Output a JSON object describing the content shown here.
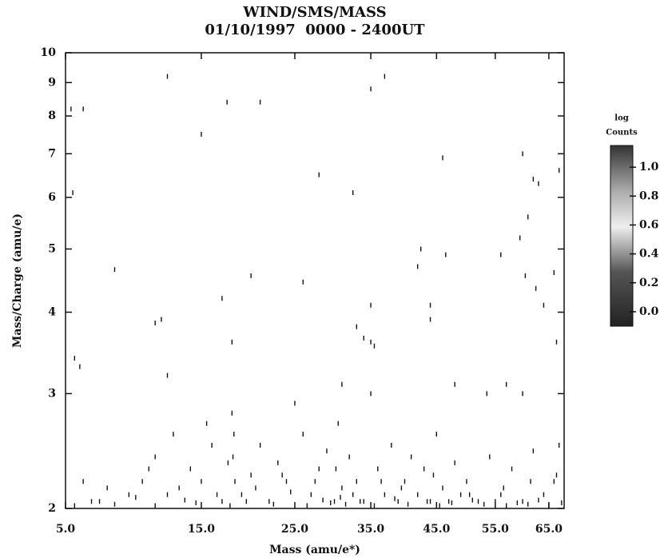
{
  "chart_data": {
    "type": "scatter",
    "title": "WIND/SMS/MASS",
    "subtitle": "01/10/1997  0000 - 2400UT",
    "x_label": "Mass (amu/e*)",
    "y_label": "Mass/Charge (amu/e)",
    "xscale": "sqrt",
    "yscale": "log",
    "xlim": [
      5,
      68
    ],
    "ylim": [
      2,
      10
    ],
    "xticks": [
      {
        "value": 5,
        "label": "5.0"
      },
      {
        "value": 15,
        "label": "15.0"
      },
      {
        "value": 25,
        "label": "25.0"
      },
      {
        "value": 35,
        "label": "35.0"
      },
      {
        "value": 45,
        "label": "45.0"
      },
      {
        "value": 55,
        "label": "55.0"
      },
      {
        "value": 65,
        "label": "65.0"
      }
    ],
    "yticks": [
      2,
      3,
      4,
      5,
      6,
      7,
      8,
      9,
      10
    ],
    "color": "#111111",
    "x": [
      5.3,
      6,
      5.4,
      12,
      15,
      17.5,
      21,
      28,
      32.5,
      35,
      37,
      46,
      60,
      62,
      63,
      67,
      61,
      59.5,
      8,
      20,
      26,
      46.5,
      56,
      42,
      42.5,
      66,
      62.5,
      64,
      60.5,
      17,
      11,
      11.5,
      18,
      5.5,
      5.8,
      12,
      33,
      34,
      35,
      35.5,
      35,
      44,
      44,
      66.5,
      31,
      35,
      48,
      53.5,
      57,
      60,
      7,
      9,
      10,
      11,
      12.5,
      13,
      14,
      15.5,
      16,
      17,
      18,
      18.2,
      19,
      20,
      21,
      22,
      23,
      24,
      25,
      26,
      27,
      28,
      29,
      30,
      30.5,
      31,
      32,
      33,
      34,
      36,
      37,
      38,
      39,
      40,
      41,
      42,
      43,
      44,
      45,
      46,
      47,
      48,
      49,
      50,
      52,
      54,
      56,
      58,
      60,
      62,
      64,
      66,
      67,
      5.5,
      6.5,
      8,
      9.5,
      11,
      13.5,
      14.5,
      16.5,
      17.8,
      18.1,
      19.5,
      22.5,
      24.5,
      26.5,
      28.5,
      29.5,
      30.8,
      31.5,
      33.5,
      35.5,
      38.5,
      40.5,
      43.5,
      45.5,
      47.5,
      51,
      53,
      55,
      57,
      59,
      61,
      63,
      65,
      67.5,
      6,
      7.5,
      10.5,
      12,
      15,
      17.6,
      18.3,
      20.5,
      23.5,
      27.5,
      30.2,
      32.5,
      36.5,
      39.5,
      44.5,
      50.5,
      56.5,
      61.5,
      66.5
    ],
    "values": [
      8.2,
      8.2,
      6.1,
      9.2,
      7.5,
      8.4,
      8.4,
      6.5,
      6.1,
      8.8,
      9.2,
      6.9,
      7.0,
      6.4,
      6.3,
      6.6,
      5.6,
      5.2,
      4.65,
      4.55,
      4.45,
      4.9,
      4.9,
      4.7,
      5.0,
      4.6,
      4.35,
      4.1,
      4.55,
      4.2,
      3.85,
      3.9,
      3.6,
      3.4,
      3.3,
      3.2,
      3.8,
      3.65,
      3.6,
      3.55,
      4.1,
      4.1,
      3.9,
      3.6,
      3.1,
      3.0,
      3.1,
      3.0,
      3.1,
      3.0,
      2.05,
      2.1,
      2.2,
      2.4,
      2.6,
      2.15,
      2.3,
      2.7,
      2.5,
      2.05,
      2.8,
      2.6,
      2.1,
      2.25,
      2.5,
      2.05,
      2.35,
      2.2,
      2.9,
      2.6,
      2.1,
      2.3,
      2.45,
      2.05,
      2.7,
      2.15,
      2.4,
      2.2,
      2.05,
      2.3,
      2.1,
      2.5,
      2.05,
      2.2,
      2.4,
      2.1,
      2.3,
      2.05,
      2.6,
      2.15,
      2.05,
      2.35,
      2.1,
      2.2,
      2.05,
      2.4,
      2.1,
      2.3,
      2.05,
      2.45,
      2.1,
      2.2,
      2.5,
      2.02,
      2.05,
      2.03,
      2.08,
      2.02,
      2.06,
      2.04,
      2.1,
      2.02,
      2.4,
      2.05,
      2.03,
      2.12,
      2.02,
      2.06,
      2.04,
      2.08,
      2.03,
      2.05,
      2.02,
      2.07,
      2.03,
      2.05,
      2.02,
      2.04,
      2.06,
      2.03,
      2.05,
      2.02,
      2.04,
      2.03,
      2.06,
      2.02,
      2.04,
      2.2,
      2.15,
      2.3,
      2.1,
      2.2,
      2.35,
      2.2,
      2.15,
      2.25,
      2.2,
      2.3,
      2.1,
      2.2,
      2.15,
      2.25,
      2.1,
      2.15,
      2.2,
      2.25
    ],
    "colorbar": {
      "title_lines": [
        "log",
        "Counts"
      ],
      "clim": [
        -0.1,
        1.15
      ],
      "ticks": [
        {
          "value": 1.0,
          "label": "1.0"
        },
        {
          "value": 0.8,
          "label": "0.8"
        },
        {
          "value": 0.6,
          "label": "0.6"
        },
        {
          "value": 0.4,
          "label": "0.4"
        },
        {
          "value": 0.2,
          "label": "0.2"
        },
        {
          "value": 0,
          "label": "0.0"
        }
      ]
    }
  }
}
